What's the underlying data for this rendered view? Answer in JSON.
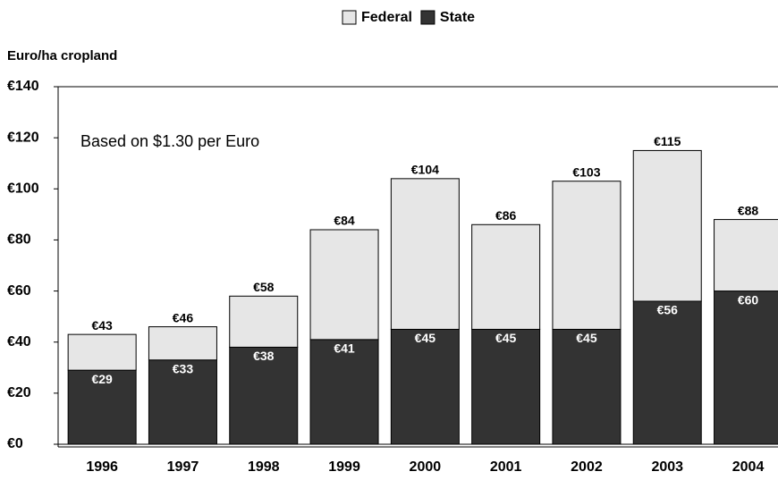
{
  "chart_data": {
    "type": "stacked_bar",
    "y_axis_label": "Euro/ha cropland",
    "annotation": "Based on $1.30 per Euro",
    "categories": [
      "1996",
      "1997",
      "1998",
      "1999",
      "2000",
      "2001",
      "2002",
      "2003",
      "2004"
    ],
    "series": [
      {
        "name": "State",
        "color": "#333333",
        "values": [
          29,
          33,
          38,
          41,
          45,
          45,
          45,
          56,
          60
        ],
        "value_labels": [
          "€29",
          "€33",
          "€38",
          "€41",
          "€45",
          "€45",
          "€45",
          "€56",
          "€60"
        ]
      },
      {
        "name": "Federal",
        "color": "#e6e6e6",
        "values": [
          14,
          13,
          20,
          43,
          59,
          41,
          58,
          59,
          28
        ]
      }
    ],
    "totals": {
      "values": [
        43,
        46,
        58,
        84,
        104,
        86,
        103,
        115,
        88
      ],
      "value_labels": [
        "€43",
        "€46",
        "€58",
        "€84",
        "€104",
        "€86",
        "€103",
        "€115",
        "€88"
      ]
    },
    "legend_order": [
      "Federal",
      "State"
    ],
    "ylim": [
      0,
      140
    ],
    "yticks": [
      {
        "value": 0,
        "label": "€0"
      },
      {
        "value": 20,
        "label": "€20"
      },
      {
        "value": 40,
        "label": "€40"
      },
      {
        "value": 60,
        "label": "€60"
      },
      {
        "value": 80,
        "label": "€80"
      },
      {
        "value": 100,
        "label": "€100"
      },
      {
        "value": 120,
        "label": "€120"
      },
      {
        "value": 140,
        "label": "€140"
      }
    ]
  }
}
